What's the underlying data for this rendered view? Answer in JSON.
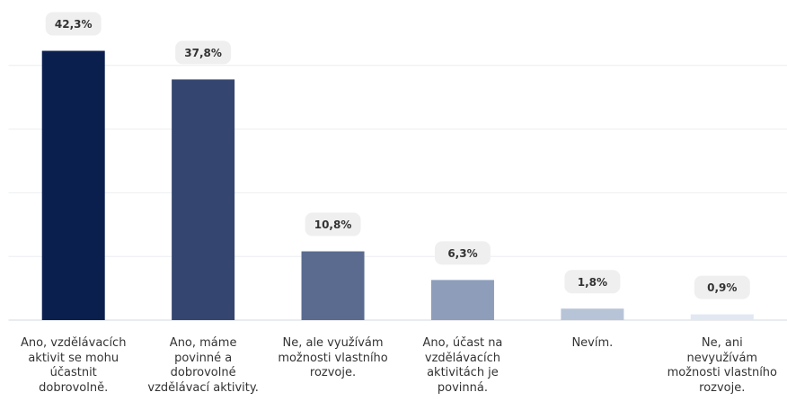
{
  "chart_data": {
    "type": "bar",
    "categories": [
      "Ano, vzdělávacích aktivit se mohu účastnit dobrovolně.",
      "Ano, máme povinné a dobrovolné vzdělávací aktivity.",
      "Ne, ale využívám možnosti vlastního rozvoje.",
      "Ano, účast na vzdělávacích aktivitách je povinná.",
      "Nevím.",
      "Ne, ani nevyužívám možnosti vlastního rozvoje."
    ],
    "values": [
      42.3,
      37.8,
      10.8,
      6.3,
      1.8,
      0.9
    ],
    "value_labels": [
      "42,3%",
      "37,8%",
      "10,8%",
      "6,3%",
      "1,8%",
      "0,9%"
    ],
    "colors": [
      "#0b1f4f",
      "#34466f",
      "#5a6b8f",
      "#8d9dba",
      "#b7c4d8",
      "#e1e8f1"
    ],
    "ylim": [
      0,
      50
    ],
    "yticks": [
      0,
      10,
      20,
      30,
      40
    ],
    "grid": true
  }
}
